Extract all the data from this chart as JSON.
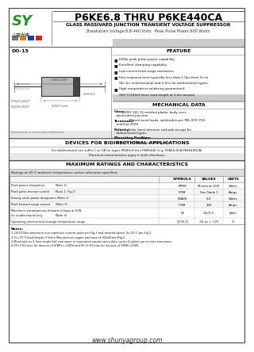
{
  "title": "P6KE6.8 THRU P6KE440CA",
  "subtitle": "GLASS PASSIVAED JUNCTION TRANSIENT VOLTAGE SUPPRESSOR",
  "subtitle2": "Breakdown Voltage:6.8-440 Volts   Peak Pulse Power:600 Watts",
  "package": "DO-15",
  "feature_title": "FEATURE",
  "feat_items": [
    "600w peak pulse power capability",
    "Excellent clamping capability",
    "Low incremental surge resistance",
    "Fast response time:typically less than 1.0ps from 0v to",
    "  Vbr for unidirectional and 5.0ns for bidirectional types.",
    "High temperature soldering guaranteed:",
    "  265°C/10S/0.5mm lead length at 5 lbs tension"
  ],
  "mech_title": "MECHANICAL DATA",
  "mech_entries": [
    [
      "Case:",
      " JEDEC DO-15 molded plastic body over\n  passivated junction"
    ],
    [
      "Terminals:",
      " Plated axial leads, solderable per MIL-STD 750,\n  method 2026"
    ],
    [
      "Polarity:",
      " Color band denotes cathode except for\n  bidirectional types"
    ],
    [
      "Mounting Position:",
      " Any\n  Weight: 0.014 ounce,0.40 grams"
    ]
  ],
  "bidir_title": "DEVICES FOR BIDIRECTIONAL APPLICATIONS",
  "bidir_line1": "For bidirectional use suffix C or CA for types P6KE6.8 thru P6KE440 (e.g. P6KE6.8CA,P6KE440CA)",
  "bidir_line2": "Electrical characteristics apply in both directions.",
  "ratings_title": "MAXIMUM RATINGS AND CHARACTERISTICS",
  "ratings_note": "Ratings at 25°C ambient temperature unless otherwise specified.",
  "table_headers": [
    "SYMBOLS",
    "VALUES",
    "UNITS"
  ],
  "table_rows": [
    [
      "Peak power dissipation            (Note 1)",
      "PPPM",
      "Minimum 600",
      "Watts"
    ],
    [
      "Peak pulse reverse current      (Note 1, Fig 2)",
      "IPPM",
      "See Table 1",
      "Amps"
    ],
    [
      "Steady state power dissipation (Note 2)",
      "PSAVE",
      "5.0",
      "Watts"
    ],
    [
      "Peak forward surge current      (Note 3)",
      "IFSM",
      "100",
      "Amps"
    ],
    [
      "Maximum instantaneous forward voltage at 50A\nfor unidirectional only              (Note 4)",
      "VF",
      "3.5/5.0",
      "Volts"
    ],
    [
      "Operating junction and storage temperature range",
      "TJ,TS,TJ",
      "-55 to + 175",
      "°C"
    ]
  ],
  "notes_title": "Notes:",
  "notes": [
    "1.10/1000us waveform non-repetitive current pulse per Fig.3 and derated above Ta=25°C per Fig.2.",
    "2.TL=75°C,lead lengths 9.5mm.Mounted on copper pad area of (40x40mm)Fig.5",
    "3.Measured on 8.3ms single half sine wave or equivalent square wave,duty cycle=4 pulses per minute maximum.",
    "4.VF=3.5V max for devices of V(BR)>=200V,and VF=5.0V max for devices of V(BR)<200V"
  ],
  "website": "www.shunyagroup.com",
  "logo_green": "#2e8b2e",
  "logo_chars": "山普光电",
  "sq_colors": [
    "#777777",
    "#cc8800",
    "#1144aa",
    "#cc2222"
  ],
  "bg_color": "#ffffff",
  "gray_bar": "#cccccc",
  "light_gray": "#e8e8e8",
  "text_color": "#111111"
}
